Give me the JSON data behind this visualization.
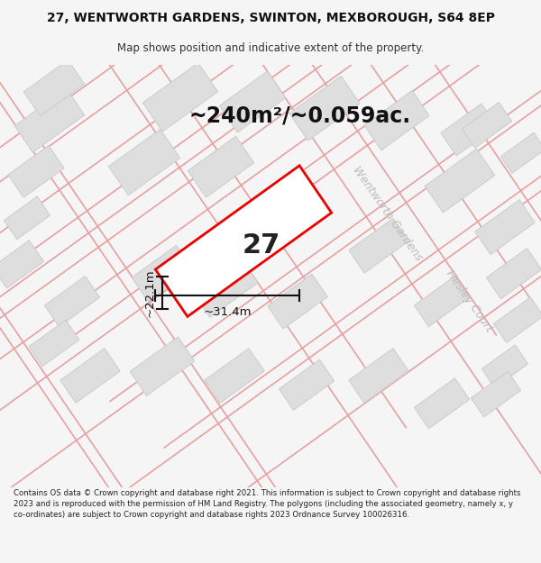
{
  "title_line1": "27, WENTWORTH GARDENS, SWINTON, MEXBOROUGH, S64 8EP",
  "title_line2": "Map shows position and indicative extent of the property.",
  "area_label": "~240m²/~0.059ac.",
  "plot_number": "27",
  "dim_width": "~31.4m",
  "dim_height": "~22.1m",
  "street_label1": "Wentworth Gardens",
  "street_label2": "Hesley Court",
  "footer_text": "Contains OS data © Crown copyright and database right 2021. This information is subject to Crown copyright and database rights 2023 and is reproduced with the permission of HM Land Registry. The polygons (including the associated geometry, namely x, y co-ordinates) are subject to Crown copyright and database rights 2023 Ordnance Survey 100026316.",
  "bg_color": "#f5f5f5",
  "map_bg": "#ffffff",
  "plot_color": "#ee0000",
  "road_stroke": "#e8a0a0",
  "building_fill": "#dedede",
  "building_stroke": "#cccccc",
  "dim_color": "#111111",
  "street_text_color": "#bbbbbb",
  "title_fontsize": 10,
  "subtitle_fontsize": 8.5,
  "area_fontsize": 17,
  "plot_num_fontsize": 22,
  "dim_fontsize": 9.5,
  "street_fontsize": 9,
  "footer_fontsize": 6.2
}
